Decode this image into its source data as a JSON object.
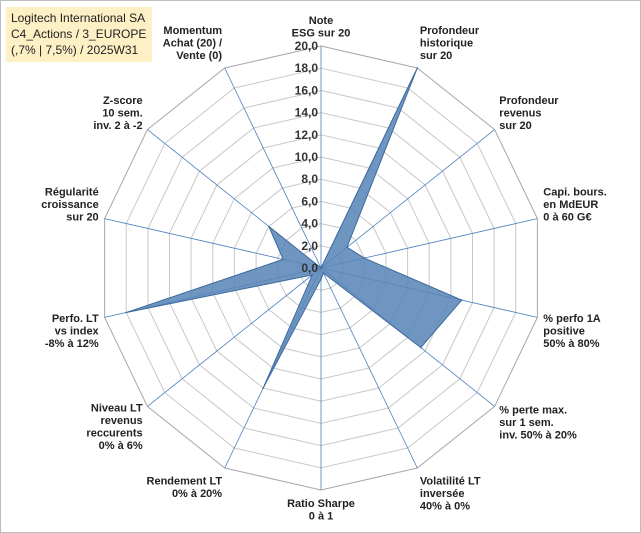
{
  "header": {
    "line1": "Logitech International SA",
    "line2": "C4_Actions / 3_EUROPE",
    "line3": "(,7% | 7,5%) / 2025W31"
  },
  "colors": {
    "fill": "#5b86b8",
    "stroke": "#3e6a9e",
    "grid": "#c8c8c8",
    "spoke": "#4a7fc0",
    "info_bg": "#fdf0c4"
  },
  "chart_data": {
    "type": "radar",
    "rmin": 0,
    "rmax": 20,
    "grid": true,
    "ticks": [
      "0,0",
      "2,0",
      "4,0",
      "6,0",
      "8,0",
      "10,0",
      "12,0",
      "14,0",
      "16,0",
      "18,0",
      "20,0"
    ],
    "categories": [
      [
        "Note",
        "ESG sur 20"
      ],
      [
        "Profondeur",
        "historique",
        "sur 20"
      ],
      [
        "Profondeur",
        "revenus",
        "sur 20"
      ],
      [
        "Capi. bours.",
        "en MdEUR",
        "0 à 60 G€"
      ],
      [
        "% perfo 1A",
        "positive",
        "50% à 80%"
      ],
      [
        "% perte max.",
        "sur 1 sem.",
        "inv. 50% à 20%"
      ],
      [
        "Volatilité LT",
        "inversée",
        "40% à 0%"
      ],
      [
        "Ratio Sharpe",
        "0 à 1"
      ],
      [
        "Rendement LT",
        "0% à 20%"
      ],
      [
        "Niveau LT",
        "revenus",
        "reccurents",
        "0% à 6%"
      ],
      [
        "Perfo. LT",
        "vs index",
        "-8% à 12%"
      ],
      [
        "Régularité",
        "croissance",
        "sur 20"
      ],
      [
        "Z-score",
        "10 sem.",
        "inv. 2 à -2"
      ],
      [
        "Momentum",
        "Achat (20) /",
        "Vente (0)"
      ]
    ],
    "series": [
      {
        "values": [
          0,
          20,
          3,
          4,
          13,
          11.5,
          0.5,
          1,
          12,
          1,
          18,
          3.5,
          6,
          0
        ]
      }
    ]
  }
}
